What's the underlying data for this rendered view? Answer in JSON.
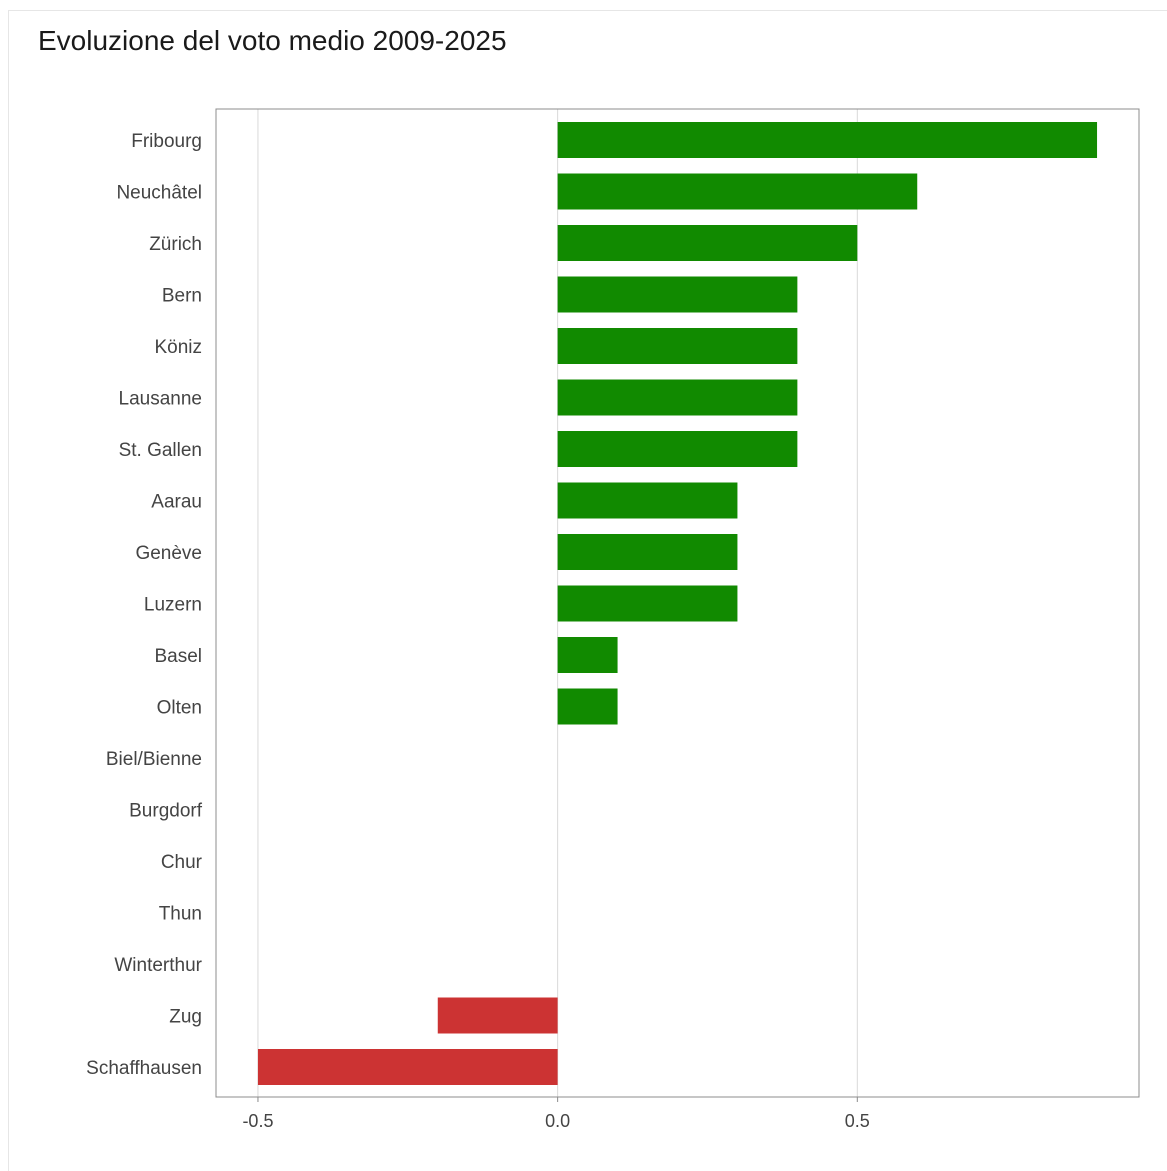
{
  "chart_data": {
    "type": "bar",
    "orientation": "horizontal",
    "title": "Evoluzione del voto medio 2009-2025",
    "xlabel": "",
    "ylabel": "",
    "categories": [
      "Fribourg",
      "Neuchâtel",
      "Zürich",
      "Bern",
      "Köniz",
      "Lausanne",
      "St. Gallen",
      "Aarau",
      "Genève",
      "Luzern",
      "Basel",
      "Olten",
      "Biel/Bienne",
      "Burgdorf",
      "Chur",
      "Thun",
      "Winterthur",
      "Zug",
      "Schaffhausen"
    ],
    "values": [
      0.9,
      0.6,
      0.5,
      0.4,
      0.4,
      0.4,
      0.4,
      0.3,
      0.3,
      0.3,
      0.1,
      0.1,
      0.0,
      0.0,
      0.0,
      0.0,
      0.0,
      -0.2,
      -0.5
    ],
    "xlim": [
      -0.57,
      0.97
    ],
    "xticks": [
      -0.5,
      0.0,
      0.5
    ],
    "xtick_labels": [
      "-0.5",
      "0.0",
      "0.5"
    ],
    "grid": "vertical",
    "legend": "none",
    "colors": {
      "positive": "#118a00",
      "negative": "#cc3333",
      "gridline": "#d9d9d9",
      "axis_border": "#8c8c8c"
    }
  }
}
